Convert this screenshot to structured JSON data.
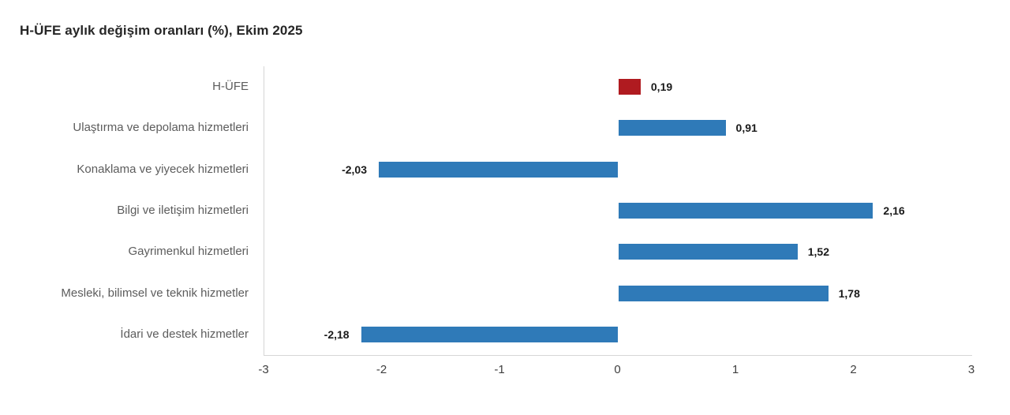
{
  "title": "H-ÜFE aylık değişim oranları (%), Ekim 2025",
  "colors": {
    "bar_default": "#2f7ab8",
    "bar_highlight": "#b01b20",
    "axis_line": "#d6d6d6",
    "title_text": "#262626",
    "category_text": "#5c5c5c",
    "value_text": "#1a1a1a",
    "tick_text": "#404040",
    "background": "#ffffff"
  },
  "chart_data": {
    "type": "bar",
    "orientation": "horizontal",
    "title": "H-ÜFE aylık değişim oranları (%), Ekim 2025",
    "categories": [
      "H-ÜFE",
      "Ulaştırma ve depolama hizmetleri",
      "Konaklama ve yiyecek hizmetleri",
      "Bilgi ve iletişim hizmetleri",
      "Gayrimenkul hizmetleri",
      "Mesleki, bilimsel ve teknik hizmetler",
      "İdari ve destek hizmetler"
    ],
    "values": [
      0.19,
      0.91,
      -2.03,
      2.16,
      1.52,
      1.78,
      -2.18
    ],
    "value_labels": [
      "0,19",
      "0,91",
      "-2,03",
      "2,16",
      "1,52",
      "1,78",
      "-2,18"
    ],
    "bar_colors": [
      "#b01b20",
      "#2f7ab8",
      "#2f7ab8",
      "#2f7ab8",
      "#2f7ab8",
      "#2f7ab8",
      "#2f7ab8"
    ],
    "xlabel": "",
    "ylabel": "",
    "xlim": [
      -3,
      3
    ],
    "x_ticks": [
      -3,
      -2,
      -1,
      0,
      1,
      2,
      3
    ],
    "x_tick_labels": [
      "-3",
      "-2",
      "-1",
      "0",
      "1",
      "2",
      "3"
    ],
    "grid": false,
    "legend": false,
    "data_labels": true
  }
}
